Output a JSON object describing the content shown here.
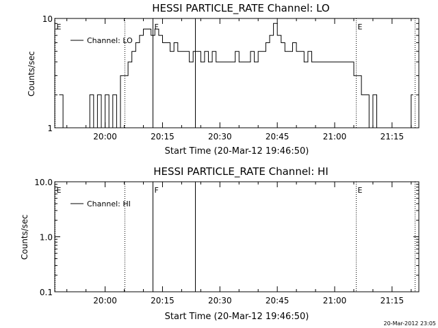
{
  "timestamp": "20-Mar-2012 23:05",
  "colors": {
    "background": "#ffffff",
    "foreground": "#000000"
  },
  "chart_data": [
    {
      "type": "line",
      "title": "HESSI PARTICLE_RATE Channel: LO",
      "xlabel": "Start Time (20-Mar-12 19:46:50)",
      "ylabel": "Counts/sec",
      "yscale": "log",
      "ylim": [
        1,
        10
      ],
      "ytick_labels": [
        "1",
        "10"
      ],
      "ytick_values": [
        1,
        10
      ],
      "xlim": [
        "19:46:50",
        "21:22:00"
      ],
      "xtick_labels": [
        "20:00",
        "20:15",
        "20:30",
        "20:45",
        "21:00",
        "21:15"
      ],
      "grid": false,
      "legend": {
        "position": "upper-left",
        "entries": [
          "Channel: LO"
        ]
      },
      "event_markers": [
        {
          "label": "E",
          "time": "19:46:50",
          "style": "dotted"
        },
        {
          "label": "",
          "time": "20:05:00",
          "style": "dotted"
        },
        {
          "label": "F",
          "time": "20:12:20",
          "style": "solid"
        },
        {
          "label": "",
          "time": "20:23:30",
          "style": "solid"
        },
        {
          "label": "E",
          "time": "21:05:30",
          "style": "dotted"
        },
        {
          "label": "",
          "time": "21:21:00",
          "style": "dotted"
        }
      ],
      "series": [
        {
          "name": "Channel: LO",
          "x": [
            "19:48:00",
            "19:49:00",
            "19:56:00",
            "19:57:00",
            "19:58:00",
            "19:59:00",
            "20:00:00",
            "20:01:00",
            "20:02:00",
            "20:03:00",
            "20:04:00",
            "20:05:00",
            "20:06:00",
            "20:07:00",
            "20:08:00",
            "20:09:00",
            "20:10:00",
            "20:11:00",
            "20:12:00",
            "20:13:00",
            "20:14:00",
            "20:15:00",
            "20:16:00",
            "20:17:00",
            "20:18:00",
            "20:19:00",
            "20:20:00",
            "20:21:00",
            "20:22:00",
            "20:23:00",
            "20:24:00",
            "20:25:00",
            "20:26:00",
            "20:27:00",
            "20:28:00",
            "20:29:00",
            "20:30:00",
            "20:31:00",
            "20:32:00",
            "20:33:00",
            "20:34:00",
            "20:35:00",
            "20:36:00",
            "20:37:00",
            "20:38:00",
            "20:39:00",
            "20:40:00",
            "20:41:00",
            "20:42:00",
            "20:43:00",
            "20:44:00",
            "20:45:00",
            "20:46:00",
            "20:47:00",
            "20:48:00",
            "20:49:00",
            "20:50:00",
            "20:51:00",
            "20:52:00",
            "20:53:00",
            "20:54:00",
            "20:55:00",
            "20:56:00",
            "20:57:00",
            "20:58:00",
            "20:59:00",
            "21:00:00",
            "21:01:00",
            "21:02:00",
            "21:03:00",
            "21:04:00",
            "21:05:00",
            "21:06:00",
            "21:07:00",
            "21:08:00",
            "21:09:00",
            "21:10:00",
            "21:11:00",
            "21:20:00"
          ],
          "y": [
            2,
            1,
            2,
            1,
            2,
            1,
            2,
            1,
            2,
            1,
            3,
            3,
            4,
            5,
            6,
            7,
            8,
            8,
            7,
            8,
            7,
            6,
            6,
            5,
            6,
            5,
            5,
            5,
            4,
            5,
            5,
            4,
            5,
            4,
            5,
            4,
            4,
            4,
            4,
            4,
            5,
            4,
            4,
            4,
            5,
            4,
            5,
            5,
            6,
            7,
            9,
            7,
            6,
            5,
            5,
            6,
            5,
            5,
            4,
            5,
            4,
            4,
            4,
            4,
            4,
            4,
            4,
            4,
            4,
            4,
            4,
            3,
            3,
            2,
            2,
            1,
            2,
            1,
            2
          ]
        }
      ]
    },
    {
      "type": "line",
      "title": "HESSI PARTICLE_RATE Channel: HI",
      "xlabel": "Start Time (20-Mar-12 19:46:50)",
      "ylabel": "Counts/sec",
      "yscale": "log",
      "ylim": [
        0.1,
        10
      ],
      "ytick_labels": [
        "0.1",
        "1.0",
        "10.0"
      ],
      "ytick_values": [
        0.1,
        1,
        10
      ],
      "xlim": [
        "19:46:50",
        "21:22:00"
      ],
      "xtick_labels": [
        "20:00",
        "20:15",
        "20:30",
        "20:45",
        "21:00",
        "21:15"
      ],
      "grid": false,
      "legend": {
        "position": "upper-left",
        "entries": [
          "Channel: HI"
        ]
      },
      "event_markers": [
        {
          "label": "E",
          "time": "19:46:50",
          "style": "dotted"
        },
        {
          "label": "",
          "time": "20:05:00",
          "style": "dotted"
        },
        {
          "label": "F",
          "time": "20:12:20",
          "style": "solid"
        },
        {
          "label": "",
          "time": "20:23:30",
          "style": "solid"
        },
        {
          "label": "E",
          "time": "21:05:30",
          "style": "dotted"
        },
        {
          "label": "",
          "time": "21:21:00",
          "style": "dotted"
        }
      ],
      "series": [
        {
          "name": "Channel: HI",
          "x": [],
          "y": []
        }
      ]
    }
  ]
}
